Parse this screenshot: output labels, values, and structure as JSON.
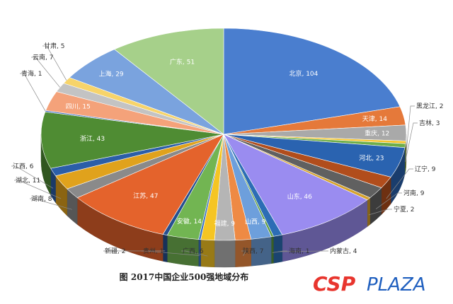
{
  "caption": "图  2017中国企业500强地域分布",
  "logo": {
    "part1": "CSP",
    "part2": "PLAZA",
    "color1": "#e8352e",
    "color2": "#1f5fbf"
  },
  "chart_data": {
    "type": "pie",
    "three_d": true,
    "start": "12 o'clock",
    "direction": "clockwise",
    "slices": [
      {
        "label": "北京",
        "value": 104,
        "color": "#4a7ecf",
        "display": "北京, 104"
      },
      {
        "label": "天津",
        "value": 14,
        "color": "#e5793a",
        "display": "天津, 14"
      },
      {
        "label": "重庆",
        "value": 12,
        "color": "#a9a9a9",
        "display": "重庆, 12"
      },
      {
        "label": "黑龙江",
        "value": 2,
        "color": "#f6c32a",
        "display": "黑龙江, 2"
      },
      {
        "label": "吉林",
        "value": 3,
        "color": "#6fae4a",
        "display": "吉林, 3"
      },
      {
        "label": "河北",
        "value": 23,
        "color": "#2a63b0",
        "display": "河北, 23"
      },
      {
        "label": "辽宁",
        "value": 9,
        "color": "#b14d1c",
        "display": "辽宁, 9"
      },
      {
        "label": "河南",
        "value": 9,
        "color": "#606060",
        "display": "河南, 9"
      },
      {
        "label": "宁夏",
        "value": 2,
        "color": "#d6a22a",
        "display": "宁夏, 2"
      },
      {
        "label": "山东",
        "value": 46,
        "color": "#9a8cf0",
        "display": "山东, 46"
      },
      {
        "label": "内蒙古",
        "value": 4,
        "color": "#2c6db5",
        "display": "内蒙古, 4"
      },
      {
        "label": "海南",
        "value": 1,
        "color": "#5a9a3b",
        "display": "海南, 1"
      },
      {
        "label": "山西",
        "value": 9,
        "color": "#6d9fdc",
        "display": "山西, 9"
      },
      {
        "label": "陕西",
        "value": 7,
        "color": "#ee8a44",
        "display": "陕西, 7"
      },
      {
        "label": "福建",
        "value": 9,
        "color": "#b5b5b5",
        "display": "福建, 9"
      },
      {
        "label": "广西",
        "value": 6,
        "color": "#f5c523",
        "display": "广西, 6"
      },
      {
        "label": "贵州",
        "value": 1,
        "color": "#3b72c4",
        "display": "贵州, 1"
      },
      {
        "label": "安徽",
        "value": 14,
        "color": "#72b552",
        "display": "安徽, 14"
      },
      {
        "label": "新疆",
        "value": 2,
        "color": "#254f8f",
        "display": "新疆, 2"
      },
      {
        "label": "江苏",
        "value": 47,
        "color": "#e4632c",
        "display": "江苏, 47"
      },
      {
        "label": "湖南",
        "value": 8,
        "color": "#8a8a8a",
        "display": "湖南, 8"
      },
      {
        "label": "湖北",
        "value": 11,
        "color": "#e0a21c",
        "display": "湖北, 11"
      },
      {
        "label": "江西",
        "value": 6,
        "color": "#2b5ea8",
        "display": "江西, 6"
      },
      {
        "label": "浙江",
        "value": 43,
        "color": "#4f8c33",
        "display": "浙江, 43"
      },
      {
        "label": "青海",
        "value": 1,
        "color": "#3f6fc2",
        "display": "青海, 1"
      },
      {
        "label": "四川",
        "value": 15,
        "color": "#f4a27a",
        "display": "四川, 15"
      },
      {
        "label": "云南",
        "value": 7,
        "color": "#c3c3c3",
        "display": "云南, 7"
      },
      {
        "label": "甘肃",
        "value": 5,
        "color": "#f7d46a",
        "display": "甘肃, 5"
      },
      {
        "label": "上海",
        "value": 29,
        "color": "#7aa3de",
        "display": "上海, 29"
      },
      {
        "label": "广东",
        "value": 51,
        "color": "#a6d08a",
        "display": "广东, 51"
      }
    ]
  }
}
